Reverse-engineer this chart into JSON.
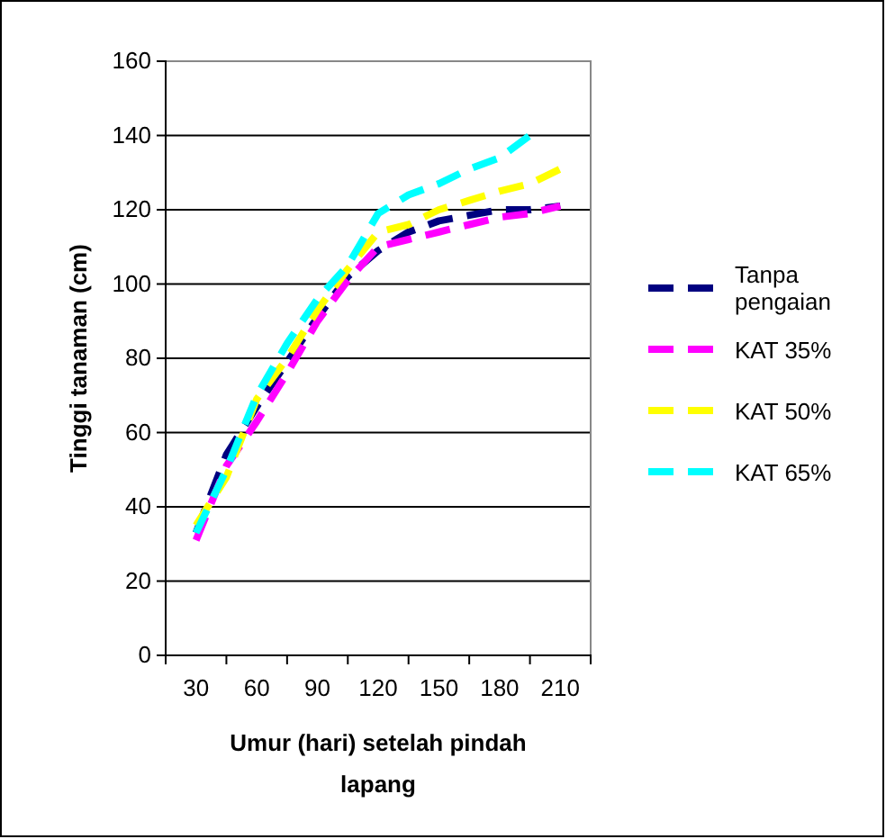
{
  "chart_data": {
    "type": "line",
    "xlabel": "Umur (hari) setelah pindah lapang",
    "ylabel": "Tinggi tanaman (cm)",
    "x": [
      30,
      45,
      60,
      75,
      90,
      105,
      120,
      135,
      150,
      165,
      180,
      195,
      210
    ],
    "series": [
      {
        "name": "Tanpa pengaian",
        "color": "#000080",
        "values": [
          33,
          54,
          67,
          79,
          91,
          102,
          109,
          114,
          117,
          118.5,
          120,
          120,
          121
        ]
      },
      {
        "name": "KAT 35%",
        "color": "#ff00ff",
        "values": [
          31,
          51,
          63,
          76,
          90,
          101,
          110,
          112,
          114,
          116,
          118,
          119,
          121
        ]
      },
      {
        "name": "KAT 50%",
        "color": "#ffff00",
        "values": [
          35,
          48,
          69,
          80,
          93,
          104,
          114,
          116,
          120,
          122.5,
          125,
          127,
          131
        ]
      },
      {
        "name": "KAT 65%",
        "color": "#00ffff",
        "values": [
          33,
          50,
          70,
          84,
          96,
          105,
          119,
          124,
          127,
          131,
          134,
          140,
          null
        ]
      }
    ],
    "xlim": [
      15,
      225
    ],
    "xticks": [
      {
        "value": 15,
        "label": null
      },
      30,
      {
        "value": 45,
        "label": null
      },
      60,
      {
        "value": 75,
        "label": null
      },
      90,
      {
        "value": 105,
        "label": null
      },
      120,
      {
        "value": 135,
        "label": null
      },
      150,
      {
        "value": 165,
        "label": null
      },
      180,
      {
        "value": 195,
        "label": null
      },
      210,
      {
        "value": 225,
        "label": null
      }
    ],
    "ylim": [
      0,
      160
    ],
    "yticks": [
      0,
      20,
      40,
      60,
      80,
      100,
      120,
      140,
      160
    ],
    "grid": "y",
    "legend": "right",
    "line_style": "dashed",
    "marker": "none"
  }
}
